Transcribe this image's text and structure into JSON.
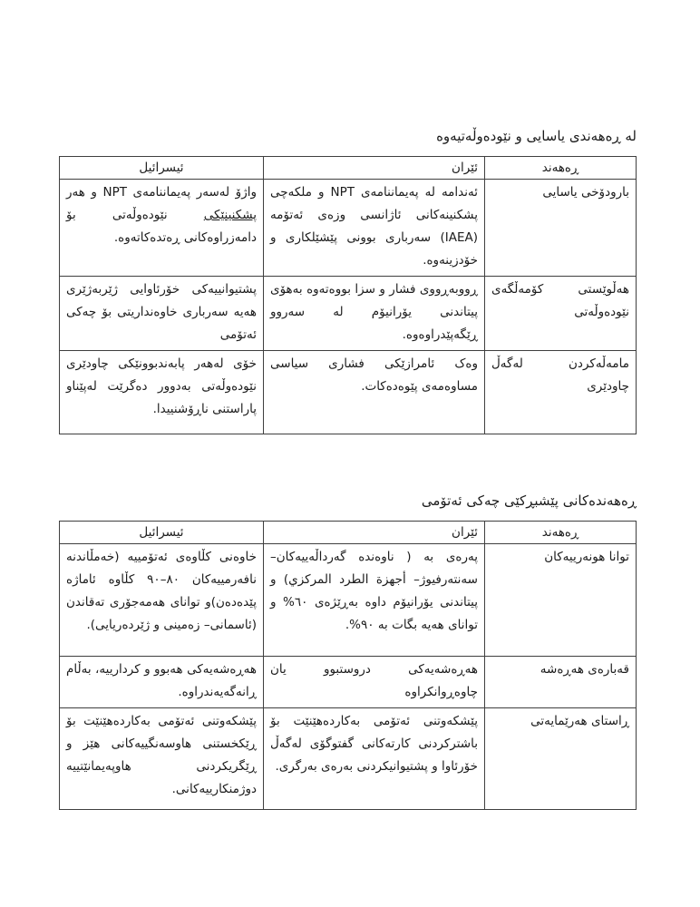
{
  "colors": {
    "text": "#1c1c1c",
    "border": "#3f3f3f",
    "background": "#ffffff"
  },
  "section_legal": {
    "title": "لە ڕەهەندی یاسایی و نێودەوڵەتیەوە",
    "headers": {
      "dimension": "ڕەهەند",
      "iran": "ئێران",
      "israel": "ئیسرائیل"
    },
    "rows": [
      {
        "dimension": "بارودۆخی یاسایی",
        "iran": "ئەندامە لە پەیماننامەی NPT و ملکەچی پشکنینەکانی ئاژانسی وزەی ئەتۆمە (IAEA) سەرباری بوونی پێشێلکاری و خۆدزینەوە.",
        "israel_pre": "واژۆ لەسەر پەیماننامەی NPT و هەر ",
        "israel_underlined": "پشکنینێکی",
        "israel_post": " نێودەوڵەتی بۆ دامەزراوەکانی ڕەتدەکاتەوە."
      },
      {
        "dimension": "هەڵوێستی کۆمەڵگەی نێودەوڵەتی",
        "iran": "ڕووبەڕووی فشار و سزا بووەتەوە بەهۆی پیتاندنی یۆرانیۆم لە سەروو ڕێگەپێدراوەوە.",
        "israel": "پشتیوانییەکی خۆرئاوایی ژێربەژێری هەیە سەرباری خاوەنداریتی بۆ چەکی ئەتۆمی"
      },
      {
        "dimension": "مامەڵەکردن لەگەڵ چاودێری",
        "iran": "وەک ئامرازێکی فشاری سیاسی مساوەمەی پێوەدەکات.",
        "israel": "خۆی لەهەر پابەندبوونێکی چاودێری نێودەوڵەتی بەدوور دەگرێت لەپێناو پاراستنی ناڕۆشنییدا."
      }
    ]
  },
  "section_race": {
    "title": "ڕەهەندەکانی پێشبڕکێی چەکی ئەتۆمی",
    "headers": {
      "dimension": "ڕەهەند",
      "iran": "ئێران",
      "israel": "ئیسرائیل"
    },
    "rows": [
      {
        "dimension": "توانا هونەرییەکان",
        "iran": "پەرەی بە ( ناوەندە گەرداڵەییەکان– سەنتەرفیوژ– أجهزة الطرد المركزي) و پیتاندنی یۆرانیۆم داوە بەڕێژەی ٦٠% و توانای هەیە بگات بە ٩٠%.",
        "israel": "خاوەنی کڵاوەی ئەتۆمییە (خەمڵاندنە نافەرمییەکان ٨٠–٩٠ کڵاوە ئاماژە پێدەدەن)و توانای هەمەجۆری تەقاندن (ئاسمانی– زەمینی و ژێردەریایی)."
      },
      {
        "dimension": "قەبارەی هەڕەشە",
        "iran": "هەڕەشەیەکی دروستبوو یان چاوەڕوانکراوە",
        "israel": "هەڕەشەیەکی هەبوو و کردارییە، بەڵام ڕانەگەیەندراوە."
      },
      {
        "dimension": "ڕاستای هەرێمایەتی",
        "iran": "پێشکەوتنی ئەتۆمی بەکاردەهێنێت بۆ باشترکردنی کارتەکانی گفتوگۆی لەگەڵ خۆرئاوا و پشتیوانیکردنی بەرەی بەرگری.",
        "israel": "پێشکەوتنی ئەتۆمی بەکاردەهێنێت بۆ ڕێکخستنی هاوسەنگییەکانی هێز و ڕێگریکردنی هاوپەیمانێتییە دوژمنکارییەکانی."
      }
    ]
  }
}
